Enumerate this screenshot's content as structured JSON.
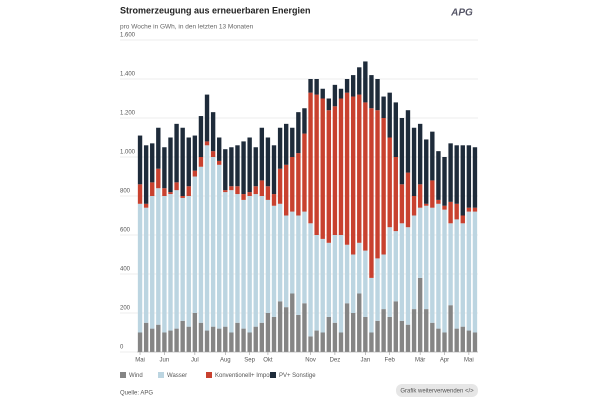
{
  "header": {
    "logo": "APG"
  },
  "chart_data": {
    "type": "bar",
    "stacked": true,
    "title": "Stromerzeugung aus erneuerbaren Energien",
    "subtitle": "pro Woche in GWh, in den letzten 13 Monaten",
    "source": "Quelle: APG",
    "button": "Grafik weiterverwenden </>",
    "categories": [
      "Mai",
      null,
      null,
      null,
      "Jun",
      null,
      null,
      null,
      null,
      "Jul",
      null,
      null,
      null,
      null,
      "Aug",
      null,
      null,
      null,
      "Sep",
      null,
      null,
      "Okt",
      null,
      null,
      null,
      null,
      null,
      null,
      "Nov",
      null,
      null,
      null,
      "Dez",
      null,
      null,
      null,
      null,
      "Jan",
      null,
      null,
      null,
      "Feb",
      null,
      null,
      null,
      null,
      "Mär",
      null,
      null,
      null,
      "Apr",
      null,
      null,
      null,
      "Mai",
      null
    ],
    "ylim": [
      0,
      1600
    ],
    "yticks": [
      0,
      200,
      400,
      600,
      800,
      {
        "value": 1000,
        "label": "1.000"
      },
      {
        "value": 1200,
        "label": "1.200"
      },
      {
        "value": 1400,
        "label": "1.400"
      },
      {
        "value": 1600,
        "label": "1.600"
      }
    ],
    "grid": true,
    "series": [
      {
        "name": "Wind",
        "color": "#858585",
        "values": [
          100,
          150,
          120,
          140,
          100,
          110,
          120,
          160,
          130,
          200,
          150,
          110,
          130,
          120,
          130,
          100,
          150,
          120,
          100,
          130,
          150,
          200,
          180,
          260,
          230,
          300,
          190,
          250,
          80,
          110,
          100,
          180,
          150,
          100,
          250,
          200,
          300,
          180,
          100,
          160,
          220,
          180,
          260,
          160,
          140,
          220,
          380,
          220,
          150,
          120,
          100,
          240,
          120,
          130,
          110,
          100
        ]
      },
      {
        "name": "Wasser",
        "color": "#bcd5e1",
        "values": [
          660,
          590,
          680,
          700,
          700,
          700,
          710,
          630,
          670,
          700,
          800,
          950,
          870,
          840,
          690,
          730,
          660,
          660,
          700,
          680,
          650,
          580,
          570,
          500,
          470,
          420,
          510,
          470,
          580,
          490,
          480,
          380,
          450,
          500,
          300,
          300,
          260,
          340,
          280,
          320,
          280,
          460,
          360,
          500,
          500,
          480,
          360,
          530,
          590,
          640,
          630,
          420,
          560,
          530,
          610,
          620
        ]
      },
      {
        "name": "Konventionell+ Import",
        "color": "#c8412f",
        "values": [
          100,
          20,
          70,
          100,
          40,
          10,
          40,
          10,
          50,
          30,
          50,
          20,
          30,
          20,
          10,
          20,
          40,
          30,
          20,
          40,
          80,
          70,
          60,
          180,
          260,
          280,
          320,
          400,
          670,
          720,
          720,
          680,
          660,
          700,
          780,
          810,
          760,
          760,
          870,
          760,
          700,
          460,
          380,
          200,
          280,
          100,
          120,
          10,
          140,
          20,
          20,
          110,
          80,
          40,
          20,
          20
        ]
      },
      {
        "name": "PV+ Sonstige",
        "color": "#1e2b3a",
        "values": [
          250,
          300,
          200,
          210,
          210,
          280,
          300,
          350,
          250,
          180,
          210,
          240,
          200,
          120,
          210,
          200,
          210,
          270,
          280,
          200,
          270,
          250,
          250,
          210,
          210,
          150,
          210,
          130,
          70,
          80,
          50,
          60,
          110,
          50,
          70,
          110,
          140,
          210,
          170,
          160,
          110,
          230,
          280,
          340,
          320,
          350,
          310,
          330,
          250,
          250,
          250,
          300,
          300,
          360,
          320,
          310
        ]
      }
    ]
  }
}
